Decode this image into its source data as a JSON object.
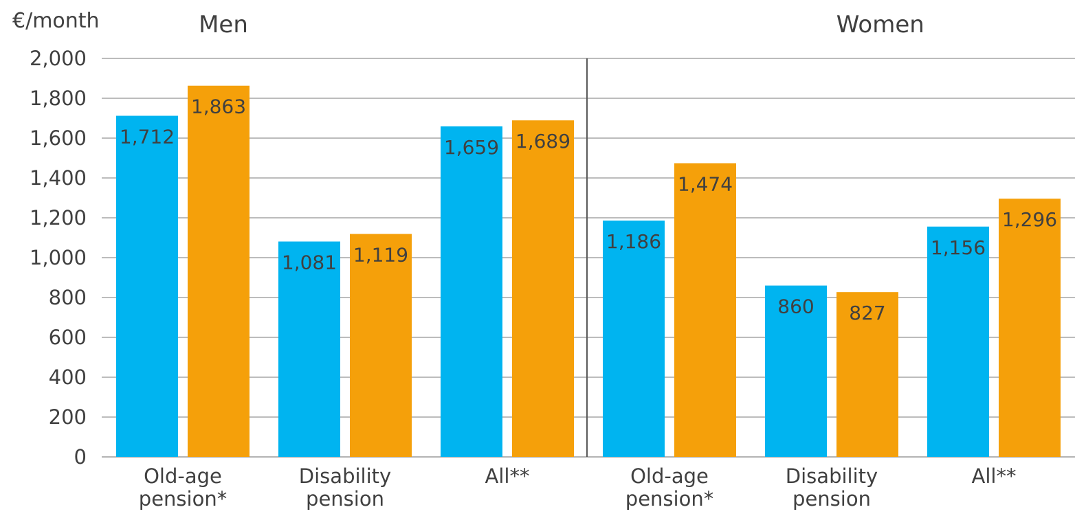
{
  "chart_data": {
    "type": "bar",
    "unit_label": "€/month",
    "groups": [
      {
        "title": "Men",
        "categories": [
          [
            "Old-age",
            "pension*"
          ],
          [
            "Disability",
            "pension"
          ],
          [
            "All**"
          ]
        ],
        "series": [
          {
            "color": "#00B4F0",
            "values": [
              1712,
              1081,
              1659
            ]
          },
          {
            "color": "#F5A00A",
            "values": [
              1863,
              1119,
              1689
            ]
          }
        ]
      },
      {
        "title": "Women",
        "categories": [
          [
            "Old-age",
            "pension*"
          ],
          [
            "Disability",
            "pension"
          ],
          [
            "All**"
          ]
        ],
        "series": [
          {
            "color": "#00B4F0",
            "values": [
              1186,
              860,
              1156
            ]
          },
          {
            "color": "#F5A00A",
            "values": [
              1474,
              827,
              1296
            ]
          }
        ]
      }
    ],
    "ylim": [
      0,
      2000
    ],
    "yticks": [
      0,
      200,
      400,
      600,
      800,
      1000,
      1200,
      1400,
      1600,
      1800,
      2000
    ],
    "grid": true,
    "legend": "none"
  }
}
